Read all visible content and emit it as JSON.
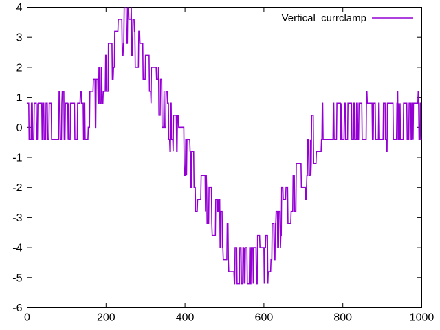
{
  "chart_data": {
    "type": "line",
    "title": "",
    "xlabel": "",
    "ylabel": "",
    "xlim": [
      0,
      1000
    ],
    "ylim": [
      -6,
      4
    ],
    "xticks": [
      0,
      200,
      400,
      600,
      800,
      1000
    ],
    "yticks": [
      -6,
      -5,
      -4,
      -3,
      -2,
      -1,
      0,
      1,
      2,
      3,
      4
    ],
    "grid": false,
    "background_color": "#ffffff",
    "border_color": "#000000",
    "legend_position": "top-right-inside",
    "series": [
      {
        "name": "Vertical_currclamp",
        "color": "#9400d3",
        "style": "noisy telegraph signal: value toggles randomly +/- noise_amplitude around a step-quantized trapezoidal envelope",
        "envelope_keypoints": [
          [
            0,
            0.2
          ],
          [
            148,
            0.2
          ],
          [
            250,
            3.4
          ],
          [
            532,
            -4.6
          ],
          [
            598,
            -4.6
          ],
          [
            752,
            0.2
          ],
          [
            1000,
            0.2
          ]
        ],
        "envelope_description": "flat ~0.2 from x=0-148, ramps to peak mean 3.4 at x=250 (band clipped at y=4), falls to mean -4.6 at x=532, flat trough (band -5.2 to -3.6) until x=598, rises back to 0.2 at x=752, flat to x=1000",
        "level_step": 0.4,
        "noise_amplitude": 0.6,
        "spike_amplitude": 1.0,
        "spike_probability": 0.04,
        "seed": 1337
      }
    ]
  }
}
